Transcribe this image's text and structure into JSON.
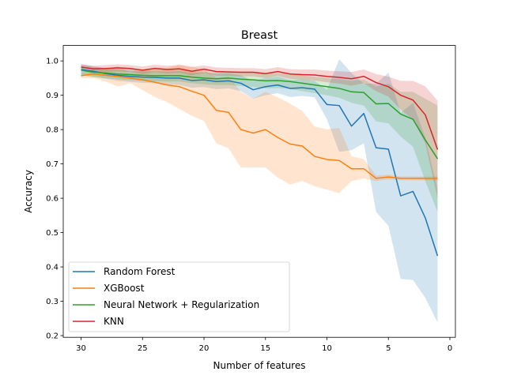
{
  "chart_data": {
    "type": "line",
    "title": "Breast",
    "xlabel": "Number of features",
    "ylabel": "Accuracy",
    "xlim": [
      31.45,
      -0.45
    ],
    "ylim": [
      0.195,
      1.045
    ],
    "x_inverted": true,
    "xticks": [
      30,
      25,
      20,
      15,
      10,
      5,
      0
    ],
    "yticks": [
      0.2,
      0.3,
      0.4,
      0.5,
      0.6,
      0.7,
      0.8,
      0.9,
      1.0
    ],
    "xtick_labels": [
      "30",
      "25",
      "20",
      "15",
      "10",
      "5",
      "0"
    ],
    "ytick_labels": [
      "0.2",
      "0.3",
      "0.4",
      "0.5",
      "0.6",
      "0.7",
      "0.8",
      "0.9",
      "1.0"
    ],
    "grid": false,
    "legend_position": "lower-left",
    "x": [
      30,
      29,
      28,
      27,
      26,
      25,
      24,
      23,
      22,
      21,
      20,
      19,
      18,
      17,
      16,
      15,
      14,
      13,
      12,
      11,
      10,
      9,
      8,
      7,
      6,
      5,
      4,
      3,
      2,
      1
    ],
    "series": [
      {
        "name": "Random Forest",
        "color": "#1f77b4",
        "values": [
          0.975,
          0.97,
          0.963,
          0.958,
          0.955,
          0.953,
          0.952,
          0.95,
          0.95,
          0.943,
          0.945,
          0.94,
          0.942,
          0.935,
          0.916,
          0.925,
          0.93,
          0.92,
          0.922,
          0.918,
          0.873,
          0.87,
          0.81,
          0.847,
          0.747,
          0.743,
          0.607,
          0.62,
          0.543,
          0.432
        ],
        "lower": [
          0.96,
          0.955,
          0.948,
          0.942,
          0.939,
          0.936,
          0.935,
          0.932,
          0.93,
          0.922,
          0.924,
          0.918,
          0.92,
          0.912,
          0.89,
          0.9,
          0.906,
          0.895,
          0.898,
          0.894,
          0.83,
          0.735,
          0.74,
          0.76,
          0.56,
          0.52,
          0.365,
          0.362,
          0.31,
          0.238
        ],
        "upper": [
          0.99,
          0.985,
          0.978,
          0.974,
          0.971,
          0.97,
          0.969,
          0.968,
          0.97,
          0.964,
          0.966,
          0.962,
          0.964,
          0.958,
          0.942,
          0.95,
          0.954,
          0.945,
          0.946,
          0.942,
          0.916,
          1.005,
          0.965,
          0.934,
          0.934,
          0.966,
          0.849,
          0.878,
          0.776,
          0.626
        ]
      },
      {
        "name": "XGBoost",
        "color": "#ff7f0e",
        "values": [
          0.957,
          0.962,
          0.958,
          0.955,
          0.95,
          0.945,
          0.938,
          0.93,
          0.925,
          0.912,
          0.9,
          0.856,
          0.85,
          0.8,
          0.79,
          0.8,
          0.777,
          0.758,
          0.752,
          0.722,
          0.713,
          0.71,
          0.686,
          0.686,
          0.658,
          0.662,
          0.658,
          0.658,
          0.658,
          0.658
        ],
        "lower": [
          0.95,
          0.95,
          0.94,
          0.925,
          0.935,
          0.915,
          0.895,
          0.88,
          0.86,
          0.84,
          0.825,
          0.76,
          0.745,
          0.69,
          0.69,
          0.69,
          0.66,
          0.64,
          0.65,
          0.635,
          0.625,
          0.615,
          0.65,
          0.658,
          0.65,
          0.655,
          0.652,
          0.652,
          0.652,
          0.652
        ],
        "upper": [
          0.965,
          0.975,
          0.976,
          0.985,
          0.966,
          0.975,
          0.981,
          0.98,
          0.99,
          0.984,
          0.975,
          0.952,
          0.955,
          0.91,
          0.89,
          0.91,
          0.894,
          0.876,
          0.854,
          0.809,
          0.801,
          0.805,
          0.722,
          0.714,
          0.666,
          0.669,
          0.664,
          0.664,
          0.664,
          0.664
        ]
      },
      {
        "name": "Neural Network + Regularization",
        "color": "#2ca02c",
        "values": [
          0.973,
          0.967,
          0.965,
          0.962,
          0.96,
          0.958,
          0.957,
          0.957,
          0.957,
          0.953,
          0.95,
          0.948,
          0.95,
          0.947,
          0.945,
          0.942,
          0.943,
          0.94,
          0.935,
          0.93,
          0.925,
          0.92,
          0.91,
          0.908,
          0.875,
          0.876,
          0.845,
          0.83,
          0.77,
          0.715
        ],
        "lower": [
          0.958,
          0.952,
          0.95,
          0.946,
          0.944,
          0.942,
          0.941,
          0.94,
          0.94,
          0.935,
          0.932,
          0.93,
          0.93,
          0.927,
          0.924,
          0.92,
          0.921,
          0.918,
          0.912,
          0.906,
          0.9,
          0.893,
          0.878,
          0.87,
          0.824,
          0.818,
          0.78,
          0.75,
          0.65,
          0.56
        ],
        "upper": [
          0.988,
          0.982,
          0.98,
          0.978,
          0.976,
          0.974,
          0.973,
          0.974,
          0.974,
          0.971,
          0.968,
          0.966,
          0.97,
          0.967,
          0.966,
          0.964,
          0.965,
          0.962,
          0.958,
          0.954,
          0.95,
          0.947,
          0.942,
          0.946,
          0.926,
          0.934,
          0.91,
          0.91,
          0.89,
          0.87
        ]
      },
      {
        "name": "KNN",
        "color": "#d62728",
        "values": [
          0.982,
          0.977,
          0.978,
          0.98,
          0.978,
          0.973,
          0.978,
          0.975,
          0.977,
          0.97,
          0.976,
          0.969,
          0.968,
          0.967,
          0.967,
          0.963,
          0.969,
          0.962,
          0.96,
          0.959,
          0.955,
          0.952,
          0.948,
          0.955,
          0.937,
          0.925,
          0.9,
          0.886,
          0.843,
          0.742
        ],
        "lower": [
          0.973,
          0.968,
          0.968,
          0.97,
          0.968,
          0.962,
          0.967,
          0.964,
          0.966,
          0.958,
          0.965,
          0.957,
          0.956,
          0.955,
          0.955,
          0.95,
          0.956,
          0.948,
          0.945,
          0.943,
          0.938,
          0.934,
          0.928,
          0.935,
          0.912,
          0.896,
          0.858,
          0.83,
          0.76,
          0.6
        ],
        "upper": [
          0.991,
          0.986,
          0.988,
          0.99,
          0.988,
          0.984,
          0.989,
          0.986,
          0.988,
          0.982,
          0.987,
          0.981,
          0.98,
          0.979,
          0.979,
          0.976,
          0.982,
          0.976,
          0.975,
          0.975,
          0.972,
          0.97,
          0.968,
          0.975,
          0.962,
          0.954,
          0.942,
          0.942,
          0.926,
          0.884
        ]
      }
    ]
  }
}
